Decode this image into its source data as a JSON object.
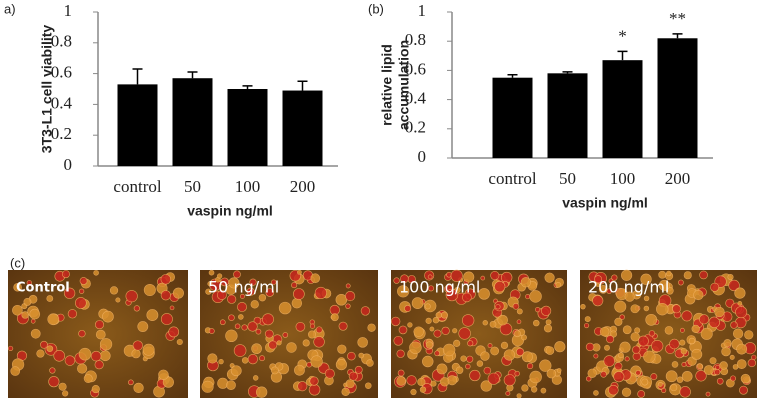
{
  "chart_data": [
    {
      "type": "bar",
      "panel_label": "a)",
      "ylabel": "3T3-L1 cell viability",
      "xlabel": "vaspin  ng/ml",
      "categories": [
        "control",
        "50",
        "100",
        "200"
      ],
      "values": [
        0.53,
        0.57,
        0.5,
        0.49
      ],
      "errors": [
        0.1,
        0.04,
        0.02,
        0.06
      ],
      "color": "#000000",
      "ylim": [
        0,
        1
      ],
      "yticks": [
        0,
        0.2,
        0.4,
        0.6,
        0.8,
        1
      ]
    },
    {
      "type": "bar",
      "panel_label": "(b)",
      "ylabel": [
        "relative lipid",
        "accumulation"
      ],
      "xlabel": "vaspin  ng/ml",
      "categories": [
        "control",
        "50",
        "100",
        "200"
      ],
      "values": [
        0.55,
        0.58,
        0.67,
        0.82
      ],
      "errors": [
        0.02,
        0.01,
        0.06,
        0.03
      ],
      "annotations": [
        {
          "category": "100",
          "text": "*"
        },
        {
          "category": "200",
          "text": "**"
        }
      ],
      "color": "#000000",
      "ylim": [
        0,
        1
      ],
      "yticks": [
        0,
        0.2,
        0.4,
        0.6,
        0.8,
        1
      ]
    }
  ],
  "panel_c": {
    "label": "(c)",
    "images": [
      "Control",
      "50 ng/ml",
      "100 ng/ml",
      "200 ng/ml"
    ]
  }
}
